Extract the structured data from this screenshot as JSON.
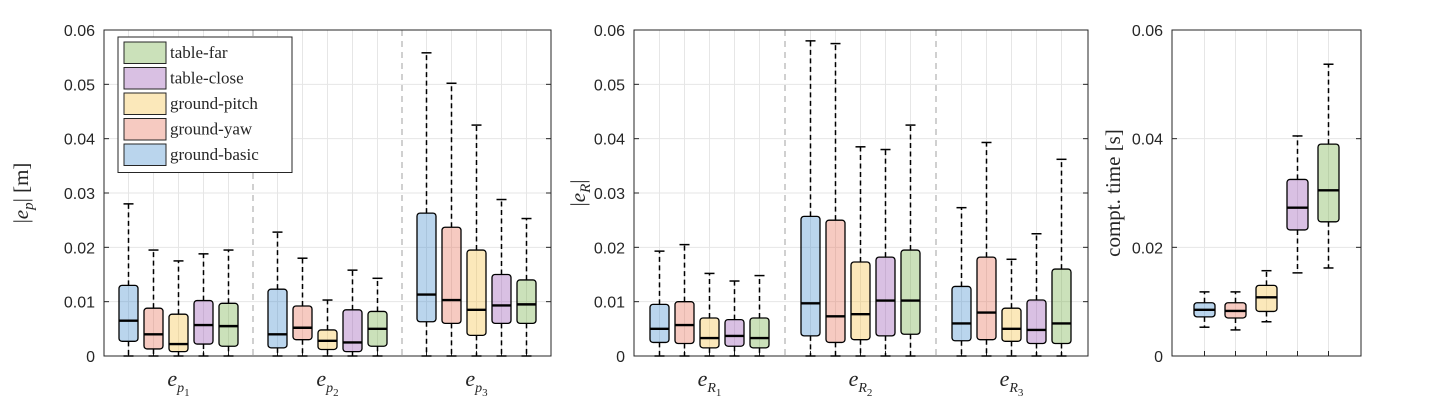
{
  "chart_data": [
    {
      "type": "box",
      "ylabel": "|e_p| [m]",
      "ylim": [
        0,
        0.06
      ],
      "yticks": [
        "0",
        "0.01",
        "0.02",
        "0.03",
        "0.04",
        "0.05",
        "0.06"
      ],
      "legend_position": "top-left",
      "series": [
        {
          "name": "ground-basic",
          "color": "#4a90d0"
        },
        {
          "name": "ground-yaw",
          "color": "#e8745c"
        },
        {
          "name": "ground-pitch",
          "color": "#f5c24a"
        },
        {
          "name": "table-close",
          "color": "#9b59b6"
        },
        {
          "name": "table-far",
          "color": "#76b04a"
        }
      ],
      "groups": [
        {
          "label": "e",
          "sub": "p",
          "sub2": "1",
          "boxes": [
            {
              "series": "ground-basic",
              "min": 0,
              "q1": 0.0027,
              "median": 0.0065,
              "q3": 0.013,
              "max": 0.028
            },
            {
              "series": "ground-yaw",
              "min": 0,
              "q1": 0.0013,
              "median": 0.004,
              "q3": 0.0088,
              "max": 0.0195
            },
            {
              "series": "ground-pitch",
              "min": 0,
              "q1": 0.0008,
              "median": 0.0022,
              "q3": 0.0077,
              "max": 0.0175
            },
            {
              "series": "table-close",
              "min": 0,
              "q1": 0.0022,
              "median": 0.0057,
              "q3": 0.0102,
              "max": 0.0188
            },
            {
              "series": "table-far",
              "min": 0,
              "q1": 0.0018,
              "median": 0.0055,
              "q3": 0.0097,
              "max": 0.0195
            }
          ]
        },
        {
          "label": "e",
          "sub": "p",
          "sub2": "2",
          "boxes": [
            {
              "series": "ground-basic",
              "min": 0,
              "q1": 0.0015,
              "median": 0.004,
              "q3": 0.0123,
              "max": 0.0228
            },
            {
              "series": "ground-yaw",
              "min": 0,
              "q1": 0.003,
              "median": 0.0052,
              "q3": 0.0092,
              "max": 0.018
            },
            {
              "series": "ground-pitch",
              "min": 0,
              "q1": 0.0012,
              "median": 0.0028,
              "q3": 0.0048,
              "max": 0.0103
            },
            {
              "series": "table-close",
              "min": 0,
              "q1": 0.0008,
              "median": 0.0025,
              "q3": 0.0085,
              "max": 0.0158
            },
            {
              "series": "table-far",
              "min": 0,
              "q1": 0.0018,
              "median": 0.005,
              "q3": 0.0082,
              "max": 0.0143
            }
          ]
        },
        {
          "label": "e",
          "sub": "p",
          "sub2": "3",
          "boxes": [
            {
              "series": "ground-basic",
              "min": 0,
              "q1": 0.0063,
              "median": 0.0113,
              "q3": 0.0263,
              "max": 0.0558
            },
            {
              "series": "ground-yaw",
              "min": 0,
              "q1": 0.006,
              "median": 0.0103,
              "q3": 0.0237,
              "max": 0.0502
            },
            {
              "series": "ground-pitch",
              "min": 0,
              "q1": 0.0038,
              "median": 0.0085,
              "q3": 0.0195,
              "max": 0.0425
            },
            {
              "series": "table-close",
              "min": 0,
              "q1": 0.006,
              "median": 0.0093,
              "q3": 0.015,
              "max": 0.0288
            },
            {
              "series": "table-far",
              "min": 0,
              "q1": 0.006,
              "median": 0.0095,
              "q3": 0.014,
              "max": 0.0253
            }
          ]
        }
      ]
    },
    {
      "type": "box",
      "ylabel": "|e_R|",
      "ylim": [
        0,
        0.06
      ],
      "yticks": [
        "0",
        "0.01",
        "0.02",
        "0.03",
        "0.04",
        "0.05",
        "0.06"
      ],
      "groups": [
        {
          "label": "e",
          "sub": "R",
          "sub2": "1",
          "boxes": [
            {
              "series": "ground-basic",
              "min": 0,
              "q1": 0.0025,
              "median": 0.005,
              "q3": 0.0095,
              "max": 0.0193
            },
            {
              "series": "ground-yaw",
              "min": 0,
              "q1": 0.0023,
              "median": 0.0057,
              "q3": 0.01,
              "max": 0.0205
            },
            {
              "series": "ground-pitch",
              "min": 0,
              "q1": 0.0015,
              "median": 0.0033,
              "q3": 0.007,
              "max": 0.0152
            },
            {
              "series": "table-close",
              "min": 0,
              "q1": 0.0018,
              "median": 0.0037,
              "q3": 0.0067,
              "max": 0.0138
            },
            {
              "series": "table-far",
              "min": 0,
              "q1": 0.0015,
              "median": 0.0033,
              "q3": 0.007,
              "max": 0.0148
            }
          ]
        },
        {
          "label": "e",
          "sub": "R",
          "sub2": "2",
          "boxes": [
            {
              "series": "ground-basic",
              "min": 0,
              "q1": 0.0037,
              "median": 0.0097,
              "q3": 0.0257,
              "max": 0.058
            },
            {
              "series": "ground-yaw",
              "min": 0,
              "q1": 0.0025,
              "median": 0.0073,
              "q3": 0.025,
              "max": 0.0575
            },
            {
              "series": "ground-pitch",
              "min": 0,
              "q1": 0.003,
              "median": 0.0077,
              "q3": 0.0173,
              "max": 0.0385
            },
            {
              "series": "table-close",
              "min": 0,
              "q1": 0.0037,
              "median": 0.0102,
              "q3": 0.0182,
              "max": 0.038
            },
            {
              "series": "table-far",
              "min": 0,
              "q1": 0.004,
              "median": 0.0102,
              "q3": 0.0195,
              "max": 0.0425
            }
          ]
        },
        {
          "label": "e",
          "sub": "R",
          "sub2": "3",
          "boxes": [
            {
              "series": "ground-basic",
              "min": 0,
              "q1": 0.0028,
              "median": 0.006,
              "q3": 0.0128,
              "max": 0.0273
            },
            {
              "series": "ground-yaw",
              "min": 0,
              "q1": 0.003,
              "median": 0.008,
              "q3": 0.0182,
              "max": 0.0393
            },
            {
              "series": "ground-pitch",
              "min": 0,
              "q1": 0.0027,
              "median": 0.005,
              "q3": 0.0088,
              "max": 0.0178
            },
            {
              "series": "table-close",
              "min": 0,
              "q1": 0.0023,
              "median": 0.0048,
              "q3": 0.0103,
              "max": 0.0225
            },
            {
              "series": "table-far",
              "min": 0,
              "q1": 0.0023,
              "median": 0.006,
              "q3": 0.016,
              "max": 0.0362
            }
          ]
        }
      ]
    },
    {
      "type": "box",
      "ylabel": "compt. time [s]",
      "ylim": [
        0,
        0.06
      ],
      "yticks": [
        "0",
        "0.02",
        "0.04",
        "0.06"
      ],
      "groups": [
        {
          "label": "",
          "boxes": [
            {
              "series": "ground-basic",
              "min": 0.0053,
              "q1": 0.0072,
              "median": 0.0085,
              "q3": 0.0098,
              "max": 0.0118
            },
            {
              "series": "ground-yaw",
              "min": 0.0048,
              "q1": 0.007,
              "median": 0.0083,
              "q3": 0.0098,
              "max": 0.0118
            },
            {
              "series": "ground-pitch",
              "min": 0.0063,
              "q1": 0.0082,
              "median": 0.0108,
              "q3": 0.013,
              "max": 0.0157
            },
            {
              "series": "table-close",
              "min": 0.0153,
              "q1": 0.0232,
              "median": 0.0273,
              "q3": 0.0325,
              "max": 0.0405
            },
            {
              "series": "table-far",
              "min": 0.0162,
              "q1": 0.0247,
              "median": 0.0305,
              "q3": 0.039,
              "max": 0.0537
            }
          ]
        }
      ]
    }
  ]
}
